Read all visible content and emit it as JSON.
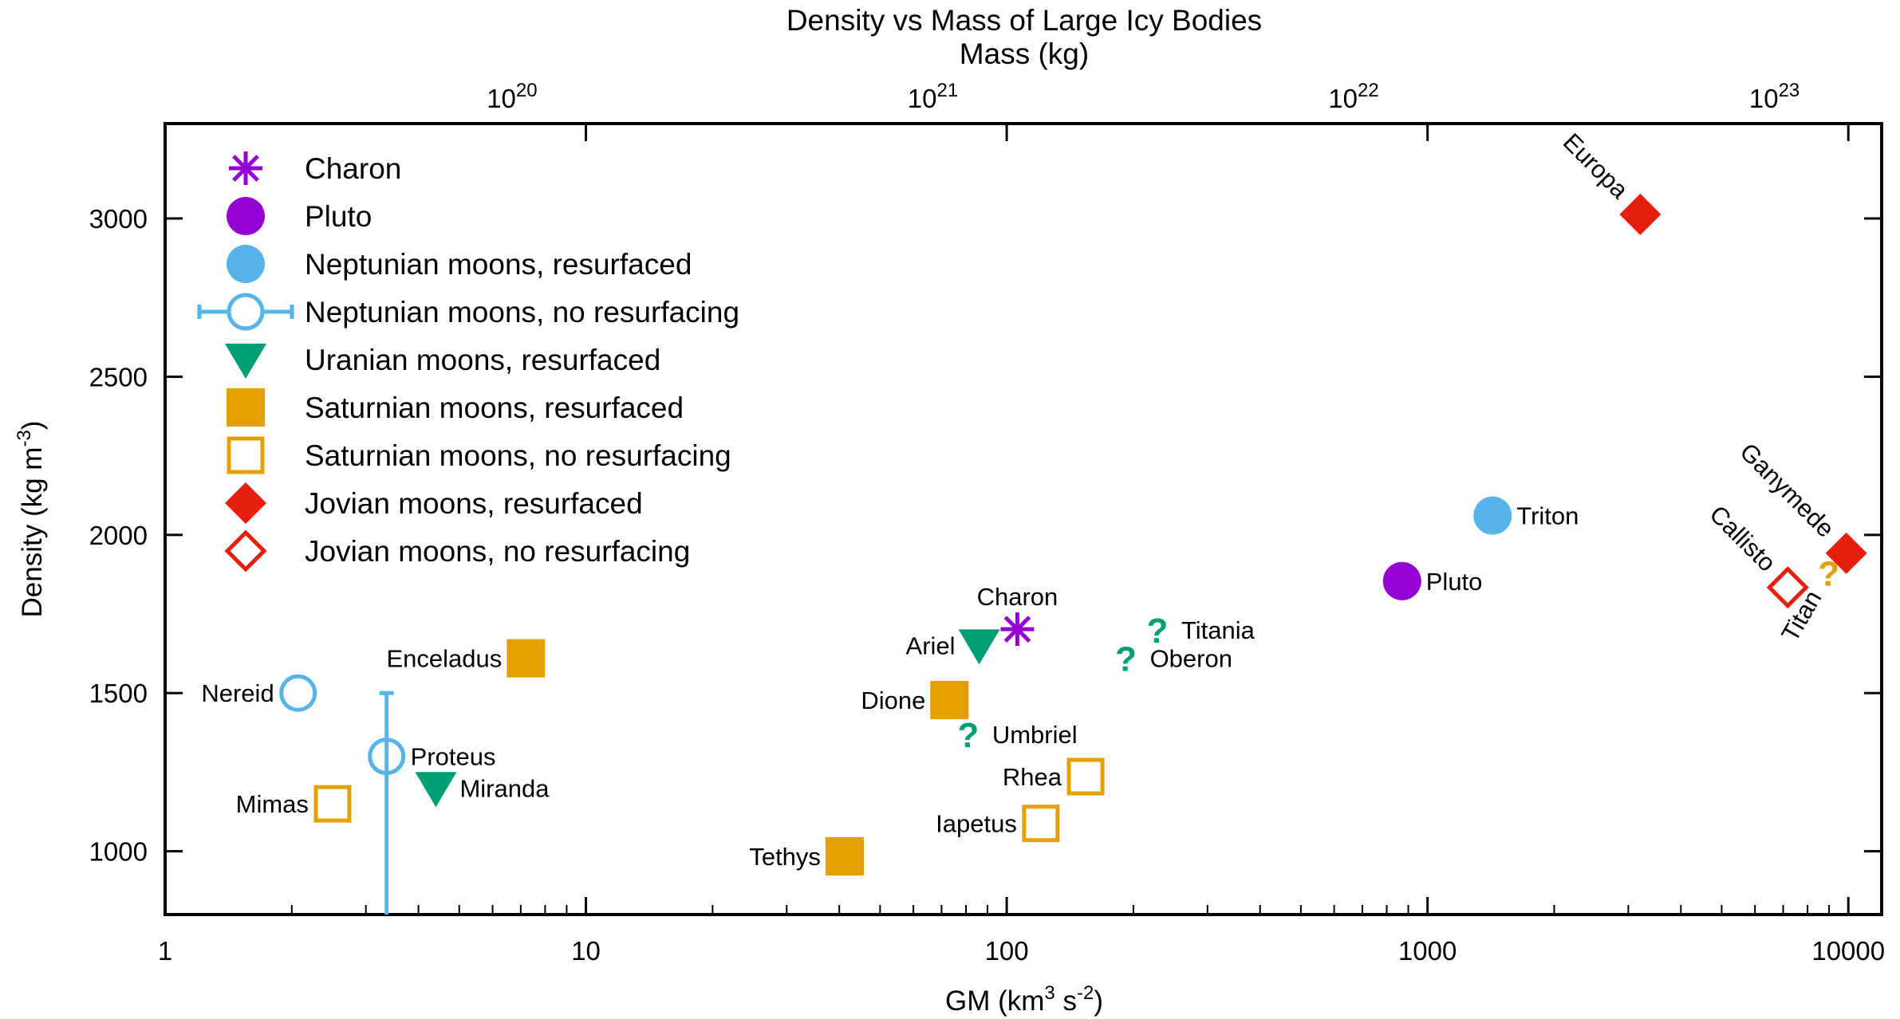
{
  "chart_data": {
    "type": "scatter",
    "title": "Density vs Mass of Large Icy Bodies",
    "top_axis": {
      "label": "Mass (kg)",
      "scale": "log",
      "ticks": [
        {
          "label": "10",
          "exp": "20",
          "gm": 6.674
        },
        {
          "label": "10",
          "exp": "21",
          "gm": 66.74
        },
        {
          "label": "10",
          "exp": "22",
          "gm": 667.4
        },
        {
          "label": "10",
          "exp": "23",
          "gm": 6674
        }
      ]
    },
    "x_axis": {
      "label_base": "GM (km",
      "label_exp1": "3",
      "label_mid": " s",
      "label_exp2": "-2",
      "label_end": ")",
      "scale": "log",
      "range": [
        1,
        12000
      ],
      "ticks": [
        "1",
        "10",
        "100",
        "1000",
        "10000"
      ]
    },
    "y_axis": {
      "label_base": "Density (kg m",
      "label_exp": "-3",
      "label_end": ")",
      "range": [
        800,
        3300
      ],
      "ticks": [
        "1000",
        "1500",
        "2000",
        "2500",
        "3000"
      ]
    },
    "grid": false,
    "legend_position": "top-left",
    "colors": {
      "charon": "#9400d3",
      "pluto": "#9400d3",
      "neptunian": "#56b4e9",
      "uranian": "#009e73",
      "saturnian": "#e69f00",
      "jovian": "#e51e10"
    },
    "legend": [
      {
        "label": "Charon",
        "marker": "asterisk",
        "color": "#9400d3"
      },
      {
        "label": "Pluto",
        "marker": "circle-filled",
        "color": "#9400d3"
      },
      {
        "label": "Neptunian moons, resurfaced",
        "marker": "circle-filled",
        "color": "#56b4e9"
      },
      {
        "label": "Neptunian moons, no resurfacing",
        "marker": "circle-open-errorbar",
        "color": "#56b4e9"
      },
      {
        "label": "Uranian moons, resurfaced",
        "marker": "triangle-down-filled",
        "color": "#009e73"
      },
      {
        "label": "Saturnian moons, resurfaced",
        "marker": "square-filled",
        "color": "#e69f00"
      },
      {
        "label": "Saturnian moons, no resurfacing",
        "marker": "square-open",
        "color": "#e69f00"
      },
      {
        "label": "Jovian moons, resurfaced",
        "marker": "diamond-filled",
        "color": "#e51e10"
      },
      {
        "label": "Jovian moons, no resurfacing",
        "marker": "diamond-open",
        "color": "#e51e10"
      }
    ],
    "points": [
      {
        "label": "Charon",
        "gm": 106,
        "density": 1702,
        "marker": "asterisk",
        "color": "#9400d3",
        "label_pos": "above"
      },
      {
        "label": "Pluto",
        "gm": 870,
        "density": 1854,
        "marker": "circle-filled",
        "color": "#9400d3",
        "label_pos": "right"
      },
      {
        "label": "Triton",
        "gm": 1428,
        "density": 2061,
        "marker": "circle-filled",
        "color": "#56b4e9",
        "label_pos": "right"
      },
      {
        "label": "Nereid",
        "gm": 2.07,
        "density": 1500,
        "marker": "circle-open",
        "color": "#56b4e9",
        "label_pos": "left"
      },
      {
        "label": "Proteus",
        "gm": 3.36,
        "density": 1300,
        "marker": "circle-open-errorbar",
        "color": "#56b4e9",
        "label_pos": "right",
        "yerr": [
          800,
          1500
        ]
      },
      {
        "label": "Miranda",
        "gm": 4.4,
        "density": 1200,
        "marker": "triangle-down-filled",
        "color": "#009e73",
        "label_pos": "right"
      },
      {
        "label": "Ariel",
        "gm": 86,
        "density": 1651,
        "marker": "triangle-down-filled",
        "color": "#009e73",
        "label_pos": "left"
      },
      {
        "label": "Umbriel",
        "gm": 81,
        "density": 1370,
        "marker": "question",
        "color": "#009e73",
        "label_pos": "right"
      },
      {
        "label": "Titania",
        "gm": 228,
        "density": 1700,
        "marker": "question",
        "color": "#009e73",
        "label_pos": "right"
      },
      {
        "label": "Oberon",
        "gm": 192,
        "density": 1610,
        "marker": "question",
        "color": "#009e73",
        "label_pos": "right"
      },
      {
        "label": "Mimas",
        "gm": 2.5,
        "density": 1150,
        "marker": "square-open",
        "color": "#e69f00",
        "label_pos": "left"
      },
      {
        "label": "Enceladus",
        "gm": 7.2,
        "density": 1610,
        "marker": "square-filled",
        "color": "#e69f00",
        "label_pos": "left"
      },
      {
        "label": "Tethys",
        "gm": 41.2,
        "density": 984,
        "marker": "square-filled",
        "color": "#e69f00",
        "label_pos": "left"
      },
      {
        "label": "Dione",
        "gm": 73.1,
        "density": 1478,
        "marker": "square-filled",
        "color": "#e69f00",
        "label_pos": "left"
      },
      {
        "label": "Rhea",
        "gm": 154,
        "density": 1236,
        "marker": "square-open",
        "color": "#e69f00",
        "label_pos": "left"
      },
      {
        "label": "Iapetus",
        "gm": 120.5,
        "density": 1088,
        "marker": "square-open",
        "color": "#e69f00",
        "label_pos": "left"
      },
      {
        "label": "Titan",
        "gm": 8978,
        "density": 1880,
        "marker": "question",
        "color": "#e69f00",
        "label_pos": "below-rotated"
      },
      {
        "label": "Europa",
        "gm": 3203,
        "density": 3013,
        "marker": "diamond-filled",
        "color": "#e51e10",
        "label_pos": "upper-left-rotated"
      },
      {
        "label": "Ganymede",
        "gm": 9888,
        "density": 1942,
        "marker": "diamond-filled",
        "color": "#e51e10",
        "label_pos": "upper-left-rotated"
      },
      {
        "label": "Callisto",
        "gm": 7179,
        "density": 1834,
        "marker": "diamond-open",
        "color": "#e51e10",
        "label_pos": "upper-left-rotated"
      }
    ]
  }
}
